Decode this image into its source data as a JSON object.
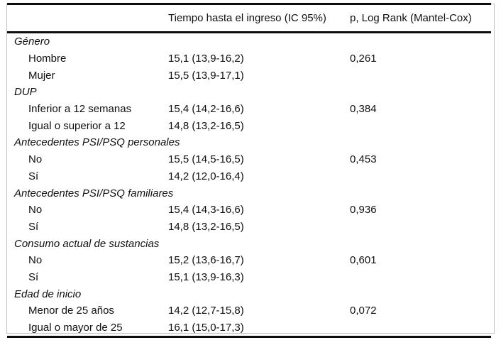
{
  "table": {
    "col2_header": "Tiempo hasta el ingreso (IC 95%)",
    "col3_header": "p, Log Rank (Mantel-Cox)",
    "sections": [
      {
        "label": "Género",
        "rows": [
          {
            "label": "Hombre",
            "time_ci": "15,1 (13,9-16,2)",
            "p": "0,261"
          },
          {
            "label": "Mujer",
            "time_ci": "15,5 (13,9-17,1)",
            "p": ""
          }
        ]
      },
      {
        "label": "DUP",
        "rows": [
          {
            "label": "Inferior a 12 semanas",
            "time_ci": "15,4 (14,2-16,6)",
            "p": "0,384"
          },
          {
            "label": "Igual o superior a 12",
            "time_ci": "14,8 (13,2-16,5)",
            "p": ""
          }
        ]
      },
      {
        "label": "Antecedentes PSI/PSQ personales",
        "rows": [
          {
            "label": "No",
            "time_ci": "15,5 (14,5-16,5)",
            "p": "0,453"
          },
          {
            "label": "Sí",
            "time_ci": "14,2 (12,0-16,4)",
            "p": ""
          }
        ]
      },
      {
        "label": "Antecedentes PSI/PSQ familiares",
        "rows": [
          {
            "label": "No",
            "time_ci": "15,4 (14,3-16,6)",
            "p": "0,936"
          },
          {
            "label": "Sí",
            "time_ci": "14,8 (13,2-16,5)",
            "p": ""
          }
        ]
      },
      {
        "label": "Consumo actual de sustancias",
        "rows": [
          {
            "label": "No",
            "time_ci": "15,2 (13,6-16,7)",
            "p": "0,601"
          },
          {
            "label": "Sí",
            "time_ci": "15,1 (13,9-16,3)",
            "p": ""
          }
        ]
      },
      {
        "label": "Edad de inicio",
        "rows": [
          {
            "label": "Menor de 25 años",
            "time_ci": "14,2 (12,7-15,8)",
            "p": "0,072"
          },
          {
            "label": "Igual o mayor de 25",
            "time_ci": "16,1 (15,0-17,3)",
            "p": ""
          }
        ]
      }
    ],
    "colors": {
      "rule": "#0d0d0d",
      "frame": "#c3c3c3",
      "text": "#101010",
      "background": "#ffffff"
    }
  }
}
